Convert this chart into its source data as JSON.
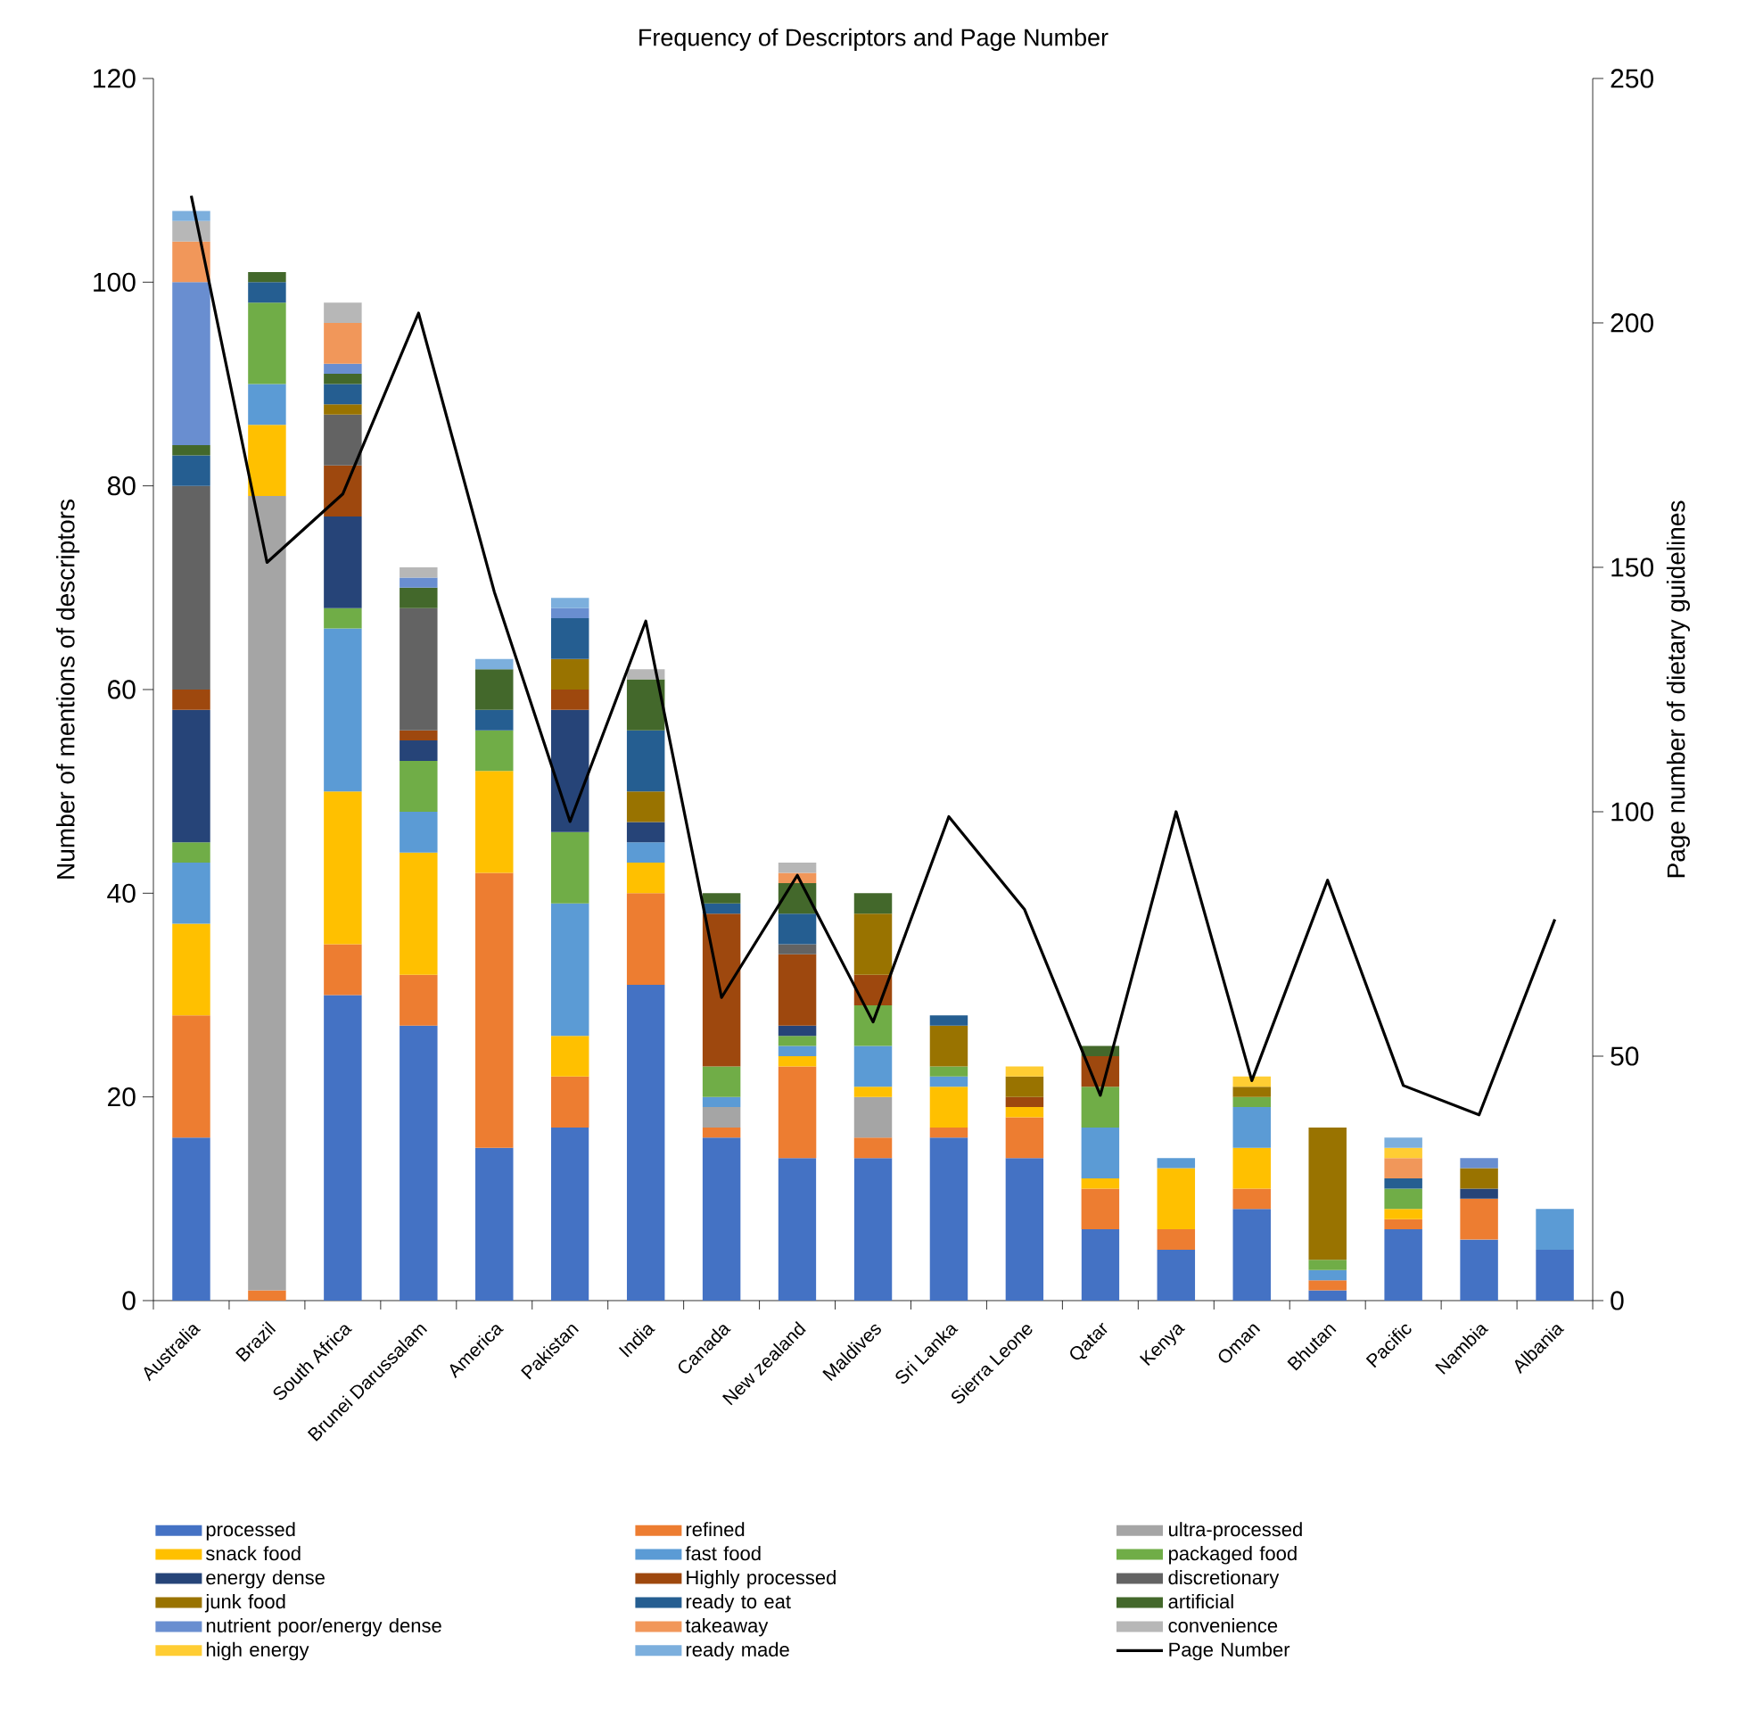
{
  "chart_data": {
    "type": "bar",
    "stacked": true,
    "title": "Frequency of Descriptors and Page Number",
    "ylabel": "Number of mentions of descriptors",
    "y2label": "Page number of dietary guidelines",
    "categories": [
      "Australia",
      "Brazil",
      "South Africa",
      "Brunei Darussalam",
      "America",
      "Pakistan",
      "India",
      "Canada",
      "New zealand",
      "Maldives",
      "Sri Lanka",
      "Sierra Leone",
      "Qatar",
      "Kenya",
      "Oman",
      "Bhutan",
      "Pacific",
      "Nambia",
      "Albania"
    ],
    "ylim": [
      0,
      120
    ],
    "yticks": [
      0,
      20,
      40,
      60,
      80,
      100,
      120
    ],
    "y2lim": [
      0,
      250
    ],
    "y2ticks": [
      0,
      50,
      100,
      150,
      200,
      250
    ],
    "grid": false,
    "legend": "bottom",
    "series": [
      {
        "name": "processed",
        "color": "#4472c4",
        "values": [
          16,
          null,
          30,
          27,
          15,
          17,
          31,
          16,
          14,
          14,
          16,
          14,
          7,
          5,
          9,
          1,
          7,
          6,
          5
        ]
      },
      {
        "name": "refined",
        "color": "#ed7d31",
        "values": [
          12,
          1,
          5,
          5,
          27,
          5,
          9,
          1,
          9,
          2,
          1,
          4,
          4,
          2,
          2,
          1,
          1,
          4,
          null
        ]
      },
      {
        "name": "ultra-processed",
        "color": "#a5a5a5",
        "values": [
          null,
          78,
          null,
          null,
          null,
          null,
          null,
          2,
          null,
          4,
          null,
          null,
          null,
          null,
          null,
          null,
          null,
          null,
          null
        ]
      },
      {
        "name": "snack food",
        "color": "#ffc000",
        "values": [
          9,
          7,
          15,
          12,
          10,
          4,
          3,
          null,
          1,
          1,
          4,
          1,
          1,
          6,
          4,
          null,
          1,
          null,
          null
        ]
      },
      {
        "name": "fast food",
        "color": "#5b9bd5",
        "values": [
          6,
          4,
          16,
          4,
          null,
          13,
          2,
          1,
          1,
          4,
          1,
          null,
          5,
          1,
          4,
          1,
          null,
          null,
          4
        ]
      },
      {
        "name": "packaged food",
        "color": "#70ad47",
        "values": [
          2,
          8,
          2,
          5,
          4,
          7,
          null,
          3,
          1,
          4,
          1,
          null,
          4,
          null,
          1,
          1,
          2,
          null,
          null
        ]
      },
      {
        "name": "energy dense",
        "color": "#264478",
        "values": [
          13,
          null,
          9,
          2,
          null,
          12,
          2,
          null,
          1,
          null,
          null,
          null,
          null,
          null,
          null,
          null,
          null,
          1,
          null
        ]
      },
      {
        "name": "Highly processed",
        "color": "#9e480e",
        "values": [
          2,
          null,
          5,
          1,
          null,
          2,
          null,
          15,
          7,
          3,
          null,
          1,
          3,
          null,
          null,
          null,
          null,
          null,
          null
        ]
      },
      {
        "name": "discretionary",
        "color": "#636363",
        "values": [
          20,
          null,
          5,
          12,
          null,
          null,
          null,
          null,
          1,
          null,
          null,
          null,
          null,
          null,
          null,
          null,
          null,
          null,
          null
        ]
      },
      {
        "name": "junk food",
        "color": "#997300",
        "values": [
          null,
          null,
          1,
          null,
          null,
          3,
          3,
          null,
          null,
          6,
          4,
          2,
          null,
          null,
          1,
          13,
          null,
          2,
          null
        ]
      },
      {
        "name": "ready to eat",
        "color": "#255e91",
        "values": [
          3,
          2,
          2,
          null,
          2,
          4,
          6,
          1,
          3,
          null,
          1,
          null,
          null,
          null,
          null,
          null,
          1,
          null,
          null
        ]
      },
      {
        "name": "artificial",
        "color": "#43682b",
        "values": [
          1,
          1,
          1,
          2,
          4,
          null,
          5,
          1,
          3,
          2,
          null,
          null,
          1,
          null,
          null,
          null,
          null,
          null,
          null
        ]
      },
      {
        "name": "nutrient poor/energy dense",
        "color": "#698ed0",
        "values": [
          16,
          null,
          1,
          1,
          null,
          1,
          null,
          null,
          null,
          null,
          null,
          null,
          null,
          null,
          null,
          null,
          null,
          1,
          null
        ]
      },
      {
        "name": "takeaway",
        "color": "#f1975a",
        "values": [
          4,
          null,
          4,
          null,
          null,
          null,
          null,
          null,
          1,
          null,
          null,
          null,
          null,
          null,
          null,
          null,
          2,
          null,
          null
        ]
      },
      {
        "name": "convenience",
        "color": "#b7b7b7",
        "values": [
          2,
          null,
          2,
          1,
          null,
          null,
          1,
          null,
          1,
          null,
          null,
          null,
          null,
          null,
          null,
          null,
          null,
          null,
          null
        ]
      },
      {
        "name": "high energy",
        "color": "#ffcd33",
        "values": [
          null,
          null,
          null,
          null,
          null,
          null,
          null,
          null,
          null,
          null,
          null,
          1,
          null,
          null,
          1,
          null,
          1,
          null,
          null
        ]
      },
      {
        "name": "ready made",
        "color": "#7cafdd",
        "values": [
          1,
          null,
          null,
          null,
          1,
          1,
          null,
          null,
          null,
          null,
          null,
          null,
          null,
          null,
          null,
          null,
          1,
          null,
          null
        ]
      },
      {
        "name": "Page Number",
        "type": "line",
        "axis": "y2",
        "color": "#000000",
        "marker": "none",
        "line_style": "solid",
        "values": [
          226,
          151,
          165,
          202,
          145,
          98,
          139,
          62,
          87,
          57,
          99,
          80,
          42,
          100,
          45,
          86,
          44,
          38,
          78
        ]
      }
    ]
  }
}
